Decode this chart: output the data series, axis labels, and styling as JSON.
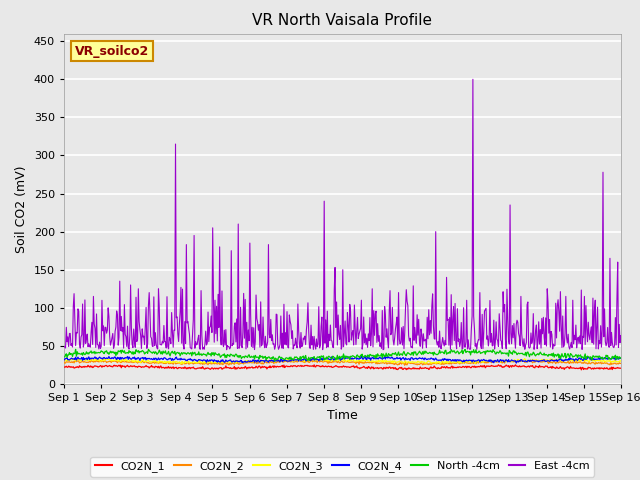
{
  "title": "VR North Vaisala Profile",
  "xlabel": "Time",
  "ylabel": "Soil CO2 (mV)",
  "ylim": [
    0,
    460
  ],
  "yticks": [
    0,
    50,
    100,
    150,
    200,
    250,
    300,
    350,
    400,
    450
  ],
  "annotation_text": "VR_soilco2",
  "annotation_bbox_facecolor": "#FFFF99",
  "annotation_bbox_edgecolor": "#CC8800",
  "xtick_labels": [
    "Sep 1",
    "Sep 2",
    "Sep 3",
    "Sep 4",
    "Sep 5",
    "Sep 6",
    "Sep 7",
    "Sep 8",
    "Sep 9",
    "Sep 10",
    "Sep 11",
    "Sep 12",
    "Sep 13",
    "Sep 14",
    "Sep 15",
    "Sep 16"
  ],
  "series_colors": {
    "CO2N_1": "#FF0000",
    "CO2N_2": "#FF8800",
    "CO2N_3": "#FFFF00",
    "CO2N_4": "#0000FF",
    "North_4cm": "#00CC00",
    "East_4cm": "#9900CC"
  },
  "legend_labels": [
    "CO2N_1",
    "CO2N_2",
    "CO2N_3",
    "CO2N_4",
    "North -4cm",
    "East -4cm"
  ],
  "fig_facecolor": "#E8E8E8",
  "plot_bg_color": "#E8E8E8",
  "grid_color": "#FFFFFF",
  "n_points": 720,
  "seed": 42
}
